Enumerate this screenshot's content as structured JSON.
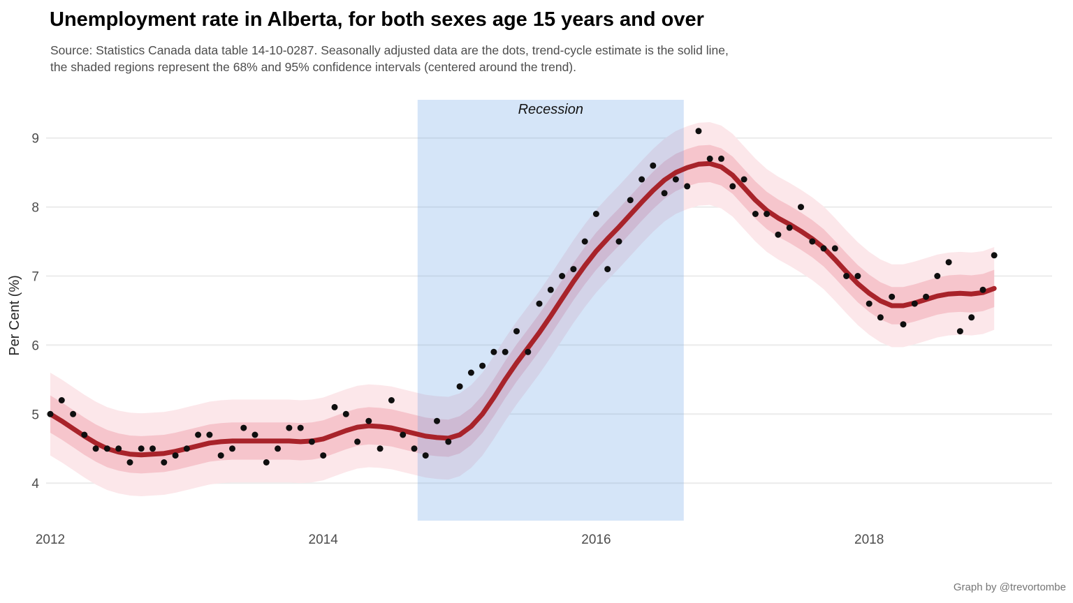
{
  "header": {
    "title": "Unemployment rate in Alberta, for both sexes age 15 years and over",
    "subtitle": [
      "Source: Statistics Canada data table 14-10-0287. Seasonally adjusted data are the dots, trend-cycle estimate is the solid line,",
      "the shaded regions represent the 68% and 95% confidence intervals (centered around the trend)."
    ]
  },
  "caption": "Graph by @trevortombe",
  "chart_data": {
    "type": "line",
    "title": "Unemployment rate in Alberta, for both sexes age 15 years and over",
    "xlabel": "",
    "ylabel": "Per Cent (%)",
    "legend": "none",
    "grid": "horizontal-only",
    "ylim": [
      3.5,
      9.55
    ],
    "y_ticks": [
      4,
      5,
      6,
      7,
      8,
      9
    ],
    "x_ticks": [
      {
        "label": "2012",
        "month_index": 0
      },
      {
        "label": "2014",
        "month_index": 24
      },
      {
        "label": "2016",
        "month_index": 48
      },
      {
        "label": "2018",
        "month_index": 72
      }
    ],
    "months": [
      "2012-01",
      "2012-02",
      "2012-03",
      "2012-04",
      "2012-05",
      "2012-06",
      "2012-07",
      "2012-08",
      "2012-09",
      "2012-10",
      "2012-11",
      "2012-12",
      "2013-01",
      "2013-02",
      "2013-03",
      "2013-04",
      "2013-05",
      "2013-06",
      "2013-07",
      "2013-08",
      "2013-09",
      "2013-10",
      "2013-11",
      "2013-12",
      "2014-01",
      "2014-02",
      "2014-03",
      "2014-04",
      "2014-05",
      "2014-06",
      "2014-07",
      "2014-08",
      "2014-09",
      "2014-10",
      "2014-11",
      "2014-12",
      "2015-01",
      "2015-02",
      "2015-03",
      "2015-04",
      "2015-05",
      "2015-06",
      "2015-07",
      "2015-08",
      "2015-09",
      "2015-10",
      "2015-11",
      "2015-12",
      "2016-01",
      "2016-02",
      "2016-03",
      "2016-04",
      "2016-05",
      "2016-06",
      "2016-07",
      "2016-08",
      "2016-09",
      "2016-10",
      "2016-11",
      "2016-12",
      "2017-01",
      "2017-02",
      "2017-03",
      "2017-04",
      "2017-05",
      "2017-06",
      "2017-07",
      "2017-08",
      "2017-09",
      "2017-10",
      "2017-11",
      "2017-12",
      "2018-01",
      "2018-02",
      "2018-03",
      "2018-04",
      "2018-05",
      "2018-06",
      "2018-07",
      "2018-08",
      "2018-09",
      "2018-10",
      "2018-11",
      "2018-12"
    ],
    "dots": [
      5.0,
      5.2,
      5.0,
      4.7,
      4.5,
      4.5,
      4.5,
      4.3,
      4.5,
      4.5,
      4.3,
      4.4,
      4.5,
      4.7,
      4.7,
      4.4,
      4.5,
      4.8,
      4.7,
      4.3,
      4.5,
      4.8,
      4.8,
      4.6,
      4.4,
      5.1,
      5.0,
      4.6,
      4.9,
      4.5,
      5.2,
      4.7,
      4.5,
      4.4,
      4.9,
      4.6,
      5.4,
      5.6,
      5.7,
      5.9,
      5.9,
      6.2,
      5.9,
      6.6,
      6.8,
      7.0,
      7.1,
      7.5,
      7.9,
      7.1,
      7.5,
      8.1,
      8.4,
      8.6,
      8.2,
      8.4,
      8.3,
      9.1,
      8.7,
      8.7,
      8.3,
      8.4,
      7.9,
      7.9,
      7.6,
      7.7,
      8.0,
      7.5,
      7.4,
      7.4,
      7.0,
      7.0,
      6.6,
      6.4,
      6.7,
      6.3,
      6.6,
      6.7,
      7.0,
      7.2,
      6.2,
      6.4,
      6.8,
      7.3
    ],
    "trend": [
      5.0,
      4.9,
      4.79,
      4.68,
      4.58,
      4.5,
      4.45,
      4.42,
      4.41,
      4.42,
      4.43,
      4.46,
      4.5,
      4.54,
      4.58,
      4.6,
      4.61,
      4.61,
      4.61,
      4.61,
      4.61,
      4.61,
      4.6,
      4.61,
      4.64,
      4.7,
      4.76,
      4.81,
      4.83,
      4.82,
      4.8,
      4.76,
      4.72,
      4.68,
      4.66,
      4.65,
      4.7,
      4.82,
      5.0,
      5.24,
      5.5,
      5.74,
      5.96,
      6.18,
      6.42,
      6.67,
      6.92,
      7.15,
      7.36,
      7.54,
      7.71,
      7.89,
      8.07,
      8.24,
      8.39,
      8.5,
      8.57,
      8.62,
      8.63,
      8.58,
      8.46,
      8.28,
      8.1,
      7.95,
      7.84,
      7.75,
      7.65,
      7.54,
      7.41,
      7.24,
      7.06,
      6.89,
      6.75,
      6.64,
      6.57,
      6.57,
      6.61,
      6.66,
      6.71,
      6.74,
      6.75,
      6.74,
      6.76,
      6.82
    ],
    "ci68_halfwidth": 0.27,
    "ci95_halfwidth": 0.6,
    "recession": {
      "label": "Recession",
      "start_month_index": 32.3,
      "end_month_index": 55.7
    },
    "colors": {
      "trend_line": "#A8232A",
      "dots": "#0F0F0F",
      "ci68_band": "#F6C5CC",
      "ci95_band": "#FCE7EA",
      "recession_fill": "#64A0E6",
      "recession_opacity": 0.27,
      "gridline": "#EBEBEB",
      "background": "#FFFFFF"
    }
  }
}
